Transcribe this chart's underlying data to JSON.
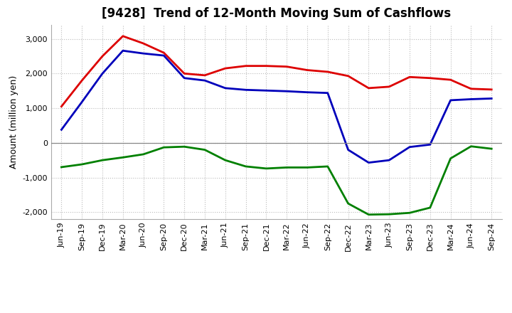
{
  "title": "[9428]  Trend of 12-Month Moving Sum of Cashflows",
  "ylabel": "Amount (million yen)",
  "x_labels": [
    "Jun-19",
    "Sep-19",
    "Dec-19",
    "Mar-20",
    "Jun-20",
    "Sep-20",
    "Dec-20",
    "Mar-21",
    "Jun-21",
    "Sep-21",
    "Dec-21",
    "Mar-22",
    "Jun-22",
    "Sep-22",
    "Dec-22",
    "Mar-23",
    "Jun-23",
    "Sep-23",
    "Dec-23",
    "Mar-24",
    "Jun-24",
    "Sep-24"
  ],
  "operating": [
    1050,
    1800,
    2500,
    3080,
    2870,
    2600,
    2000,
    1950,
    2150,
    2220,
    2220,
    2200,
    2100,
    2050,
    1930,
    1580,
    1620,
    1900,
    1870,
    1820,
    1560,
    1540
  ],
  "investing": [
    -700,
    -620,
    -500,
    -420,
    -330,
    -130,
    -110,
    -200,
    -500,
    -680,
    -740,
    -710,
    -710,
    -680,
    -1750,
    -2070,
    -2060,
    -2020,
    -1870,
    -450,
    -100,
    -170
  ],
  "free": [
    380,
    1180,
    2000,
    2660,
    2580,
    2520,
    1870,
    1800,
    1580,
    1530,
    1510,
    1490,
    1460,
    1440,
    -200,
    -570,
    -500,
    -120,
    -50,
    1230,
    1260,
    1280
  ],
  "operating_color": "#dd0000",
  "investing_color": "#008000",
  "free_color": "#0000bb",
  "ylim": [
    -2200,
    3400
  ],
  "yticks": [
    -2000,
    -1000,
    0,
    1000,
    2000,
    3000
  ],
  "background_color": "#ffffff",
  "grid_color": "#bbbbbb",
  "title_fontsize": 12,
  "axis_fontsize": 9,
  "legend_fontsize": 9,
  "tick_fontsize": 8
}
